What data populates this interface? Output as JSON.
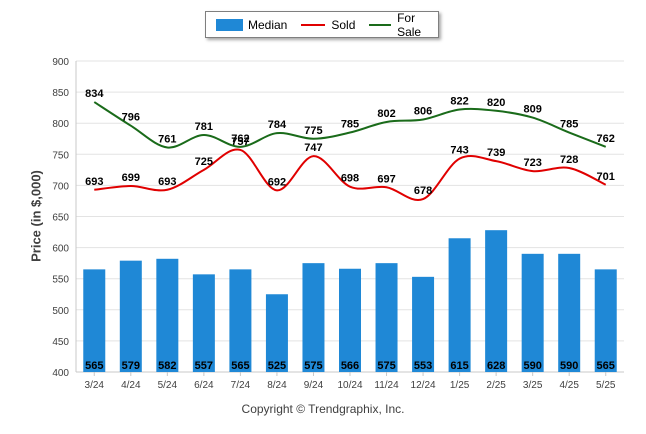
{
  "chart_data": {
    "type": "bar",
    "categories": [
      "3/24",
      "4/24",
      "5/24",
      "6/24",
      "7/24",
      "8/24",
      "9/24",
      "10/24",
      "11/24",
      "12/24",
      "1/25",
      "2/25",
      "3/25",
      "4/25",
      "5/25"
    ],
    "series": [
      {
        "name": "Median",
        "kind": "bar",
        "color": "#1f88d6",
        "values": [
          565,
          579,
          582,
          557,
          565,
          525,
          575,
          566,
          575,
          553,
          615,
          628,
          590,
          590,
          565
        ]
      },
      {
        "name": "Sold",
        "kind": "line",
        "color": "#e00000",
        "values": [
          693,
          699,
          693,
          725,
          757,
          692,
          747,
          698,
          697,
          678,
          743,
          739,
          723,
          728,
          701
        ]
      },
      {
        "name": "For Sale",
        "kind": "line",
        "color": "#1a6b1a",
        "values": [
          834,
          796,
          761,
          781,
          762,
          784,
          775,
          785,
          802,
          806,
          822,
          820,
          809,
          785,
          762
        ]
      }
    ],
    "ylabel": "Price (in $,000)",
    "ylim": [
      400,
      900
    ],
    "yticks": [
      400,
      450,
      500,
      550,
      600,
      650,
      700,
      750,
      800,
      850,
      900
    ],
    "grid": true,
    "legend": "top-center"
  },
  "footer": "Copyright © Trendgraphix, Inc."
}
